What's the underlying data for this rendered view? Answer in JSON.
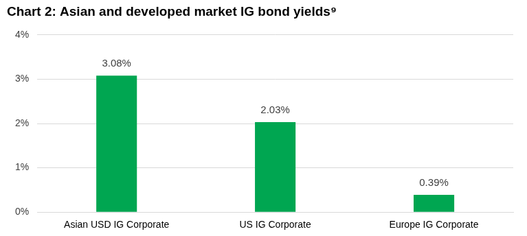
{
  "chart_data": {
    "type": "bar",
    "title": "Chart 2: Asian and developed market IG bond yields⁹",
    "categories": [
      "Asian USD IG Corporate",
      "US IG Corporate",
      "Europe IG Corporate"
    ],
    "values": [
      3.08,
      2.03,
      0.39
    ],
    "value_labels": [
      "3.08%",
      "2.03%",
      "0.39%"
    ],
    "color": "#00a651",
    "ylim": [
      0,
      4
    ],
    "yticks": [
      {
        "value": 0,
        "label": "0%"
      },
      {
        "value": 1,
        "label": "1%"
      },
      {
        "value": 2,
        "label": "2%"
      },
      {
        "value": 3,
        "label": "3%"
      },
      {
        "value": 4,
        "label": "4%"
      }
    ],
    "grid": true,
    "data_labels": true
  }
}
